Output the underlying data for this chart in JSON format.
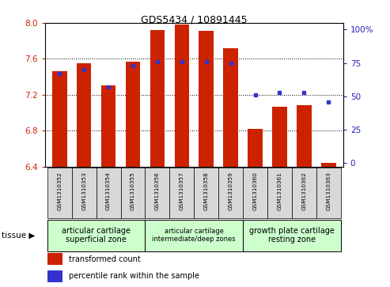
{
  "title": "GDS5434 / 10891445",
  "samples": [
    "GSM1310352",
    "GSM1310353",
    "GSM1310354",
    "GSM1310355",
    "GSM1310356",
    "GSM1310357",
    "GSM1310358",
    "GSM1310359",
    "GSM1310360",
    "GSM1310361",
    "GSM1310362",
    "GSM1310363"
  ],
  "transformed_count": [
    7.46,
    7.55,
    7.3,
    7.57,
    7.92,
    7.98,
    7.91,
    7.72,
    6.82,
    7.07,
    7.08,
    6.44
  ],
  "percentile_rank": [
    67,
    70,
    57,
    73,
    76,
    76,
    76,
    75,
    51,
    53,
    53,
    46
  ],
  "y_min": 6.4,
  "y_max": 8.0,
  "y_ticks": [
    6.4,
    6.8,
    7.2,
    7.6,
    8.0
  ],
  "right_y_ticks": [
    0,
    25,
    50,
    75,
    100
  ],
  "bar_color": "#cc2200",
  "dot_color": "#3333cc",
  "bar_width": 0.6,
  "tissue_groups": [
    {
      "label": "articular cartilage\nsuperficial zone",
      "start": 0,
      "end": 4,
      "color": "#ccffcc"
    },
    {
      "label": "articular cartilage\nintermediate/deep zones",
      "start": 4,
      "end": 8,
      "color": "#ccffcc"
    },
    {
      "label": "growth plate cartilage\nresting zone",
      "start": 8,
      "end": 12,
      "color": "#ccffcc"
    }
  ],
  "tissue_label": "tissue",
  "legend_transformed": "transformed count",
  "legend_percentile": "percentile rank within the sample",
  "left_label_color": "#cc2200",
  "right_label_color": "#2222bb",
  "tick_bg_color": "#d8d8d8",
  "fig_width": 4.93,
  "fig_height": 3.63
}
